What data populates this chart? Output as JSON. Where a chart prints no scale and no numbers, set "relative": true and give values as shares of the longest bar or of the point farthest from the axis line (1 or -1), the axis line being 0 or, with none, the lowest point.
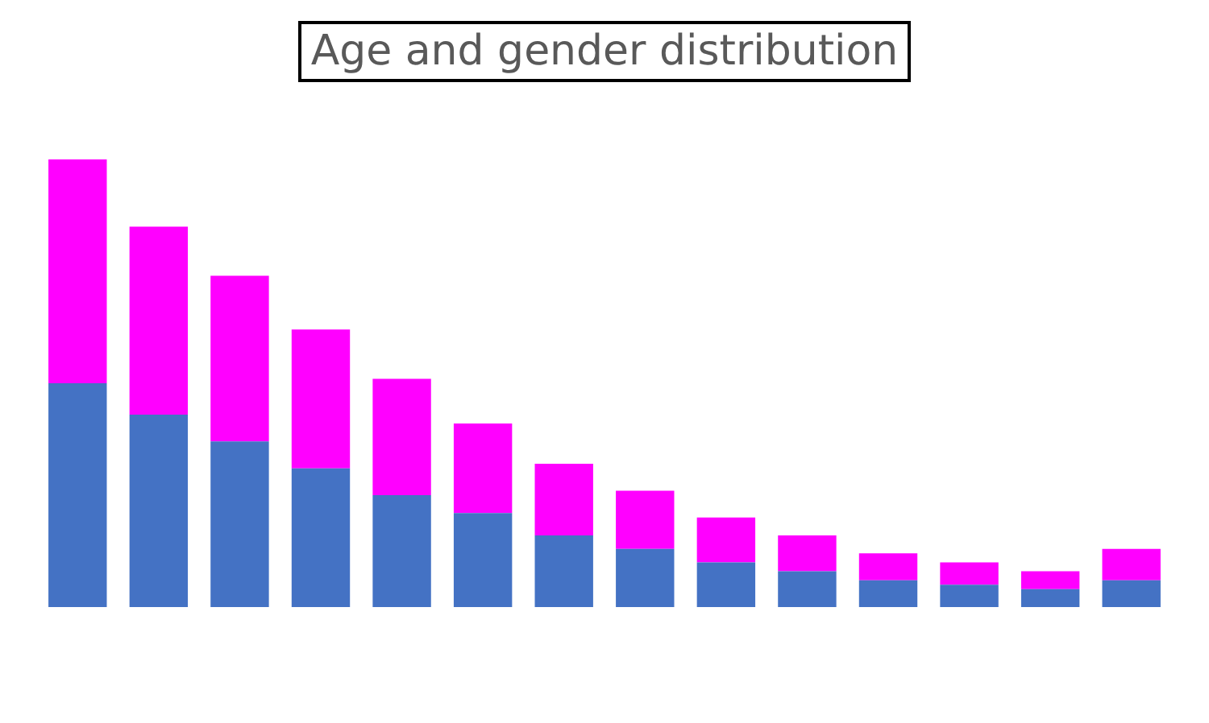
{
  "chart_data": {
    "type": "bar",
    "title": "Age and gender distribution",
    "relative": true,
    "stacked": true,
    "legend": false,
    "categories": [
      null,
      null,
      null,
      null,
      null,
      null,
      null,
      null,
      null,
      null,
      null,
      null,
      null,
      null
    ],
    "series": [
      {
        "color": "#4472c4",
        "values": [
          0.5,
          0.43,
          0.37,
          0.31,
          0.25,
          0.21,
          0.16,
          0.13,
          0.1,
          0.08,
          0.06,
          0.05,
          0.04,
          0.06
        ]
      },
      {
        "color": "#ff00ff",
        "values": [
          0.5,
          0.42,
          0.37,
          0.31,
          0.26,
          0.2,
          0.16,
          0.13,
          0.1,
          0.08,
          0.06,
          0.05,
          0.04,
          0.07
        ]
      }
    ]
  }
}
